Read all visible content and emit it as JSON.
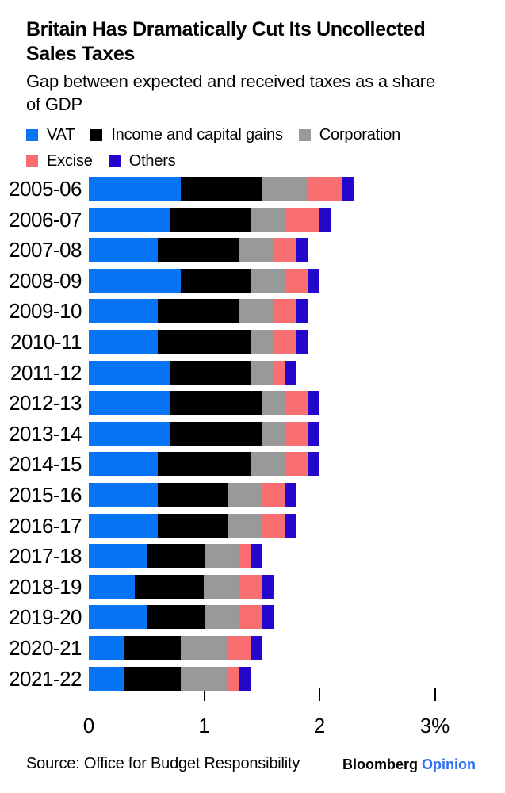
{
  "header": {
    "title_line1": "Britain Has Dramatically Cut Its Uncollected",
    "title_line2": "Sales Taxes",
    "subtitle_line1": "Gap between expected and received taxes as a share",
    "subtitle_line2": "of GDP"
  },
  "legend": {
    "items": [
      {
        "label": "VAT",
        "color": "#0674f4"
      },
      {
        "label": "Income and capital gains",
        "color": "#000000"
      },
      {
        "label": "Corporation",
        "color": "#999999"
      },
      {
        "label": "Excise",
        "color": "#f96e71"
      },
      {
        "label": "Others",
        "color": "#2407cc"
      }
    ]
  },
  "chart_data": {
    "type": "bar",
    "orientation": "horizontal",
    "stacked": true,
    "title": "Britain Has Dramatically Cut Its Uncollected Sales Taxes",
    "subtitle": "Gap between expected and received taxes as a share of GDP",
    "unit": "% of GDP",
    "categories": [
      "2005-06",
      "2006-07",
      "2007-08",
      "2008-09",
      "2009-10",
      "2010-11",
      "2011-12",
      "2012-13",
      "2013-14",
      "2014-15",
      "2015-16",
      "2016-17",
      "2017-18",
      "2018-19",
      "2019-20",
      "2020-21",
      "2021-22"
    ],
    "series": [
      {
        "name": "VAT",
        "color": "#0674f4",
        "values": [
          0.8,
          0.7,
          0.6,
          0.8,
          0.6,
          0.6,
          0.7,
          0.7,
          0.7,
          0.6,
          0.6,
          0.6,
          0.5,
          0.4,
          0.5,
          0.3,
          0.3
        ]
      },
      {
        "name": "Income and capital gains",
        "color": "#000000",
        "values": [
          0.7,
          0.7,
          0.7,
          0.6,
          0.7,
          0.8,
          0.7,
          0.8,
          0.8,
          0.8,
          0.6,
          0.6,
          0.5,
          0.6,
          0.5,
          0.5,
          0.5
        ]
      },
      {
        "name": "Corporation",
        "color": "#999999",
        "values": [
          0.4,
          0.3,
          0.3,
          0.3,
          0.3,
          0.2,
          0.2,
          0.2,
          0.2,
          0.3,
          0.3,
          0.3,
          0.3,
          0.3,
          0.3,
          0.4,
          0.4
        ]
      },
      {
        "name": "Excise",
        "color": "#f96e71",
        "values": [
          0.3,
          0.3,
          0.2,
          0.2,
          0.2,
          0.2,
          0.1,
          0.2,
          0.2,
          0.2,
          0.2,
          0.2,
          0.1,
          0.2,
          0.2,
          0.2,
          0.1
        ]
      },
      {
        "name": "Others",
        "color": "#2407cc",
        "values": [
          0.1,
          0.1,
          0.1,
          0.1,
          0.1,
          0.1,
          0.1,
          0.1,
          0.1,
          0.1,
          0.1,
          0.1,
          0.1,
          0.1,
          0.1,
          0.1,
          0.1
        ]
      }
    ],
    "x_axis": {
      "tick_labels": [
        "0",
        "1",
        "2",
        "3%"
      ],
      "tick_values": [
        0,
        1,
        2,
        3
      ]
    },
    "xlim": [
      0,
      3
    ],
    "grid": false,
    "legend_position": "top"
  },
  "footer": {
    "source": "Source: Office for Budget Responsibility",
    "brand_name": "Bloomberg",
    "brand_suffix": "Opinion",
    "brand_suffix_color": "#2e6ef5"
  }
}
